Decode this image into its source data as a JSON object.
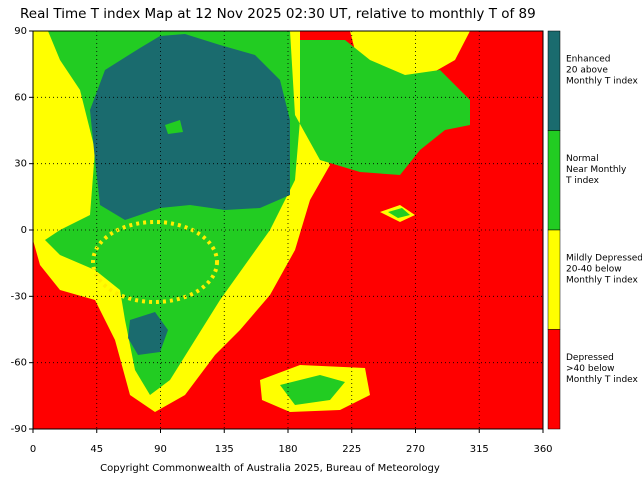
{
  "title": "Real Time T index Map at 12 Nov 2025 02:30 UT, relative to monthly T of 89",
  "map": {
    "xlim": [
      0,
      360
    ],
    "ylim": [
      -90,
      90
    ],
    "xticks": [
      0,
      45,
      90,
      135,
      180,
      225,
      270,
      315,
      360
    ],
    "yticks": [
      90,
      60,
      30,
      0,
      -30,
      -60,
      -90
    ],
    "grid": true,
    "legend": [
      {
        "color": "#1a6b6e",
        "lines": [
          "Enhanced",
          "20 above",
          "Monthly T index"
        ]
      },
      {
        "color": "#22cc22",
        "lines": [
          "Normal",
          "Near Monthly",
          "T index"
        ]
      },
      {
        "color": "#ffff00",
        "lines": [
          "Mildly Depressed",
          "20-40 below",
          "Monthly T index"
        ]
      },
      {
        "color": "#ff0000",
        "lines": [
          "Depressed",
          ">40 below",
          "Monthly T index"
        ]
      }
    ]
  },
  "copyright": "Copyright Commonwealth of Australia 2025, Bureau of Meteorology"
}
